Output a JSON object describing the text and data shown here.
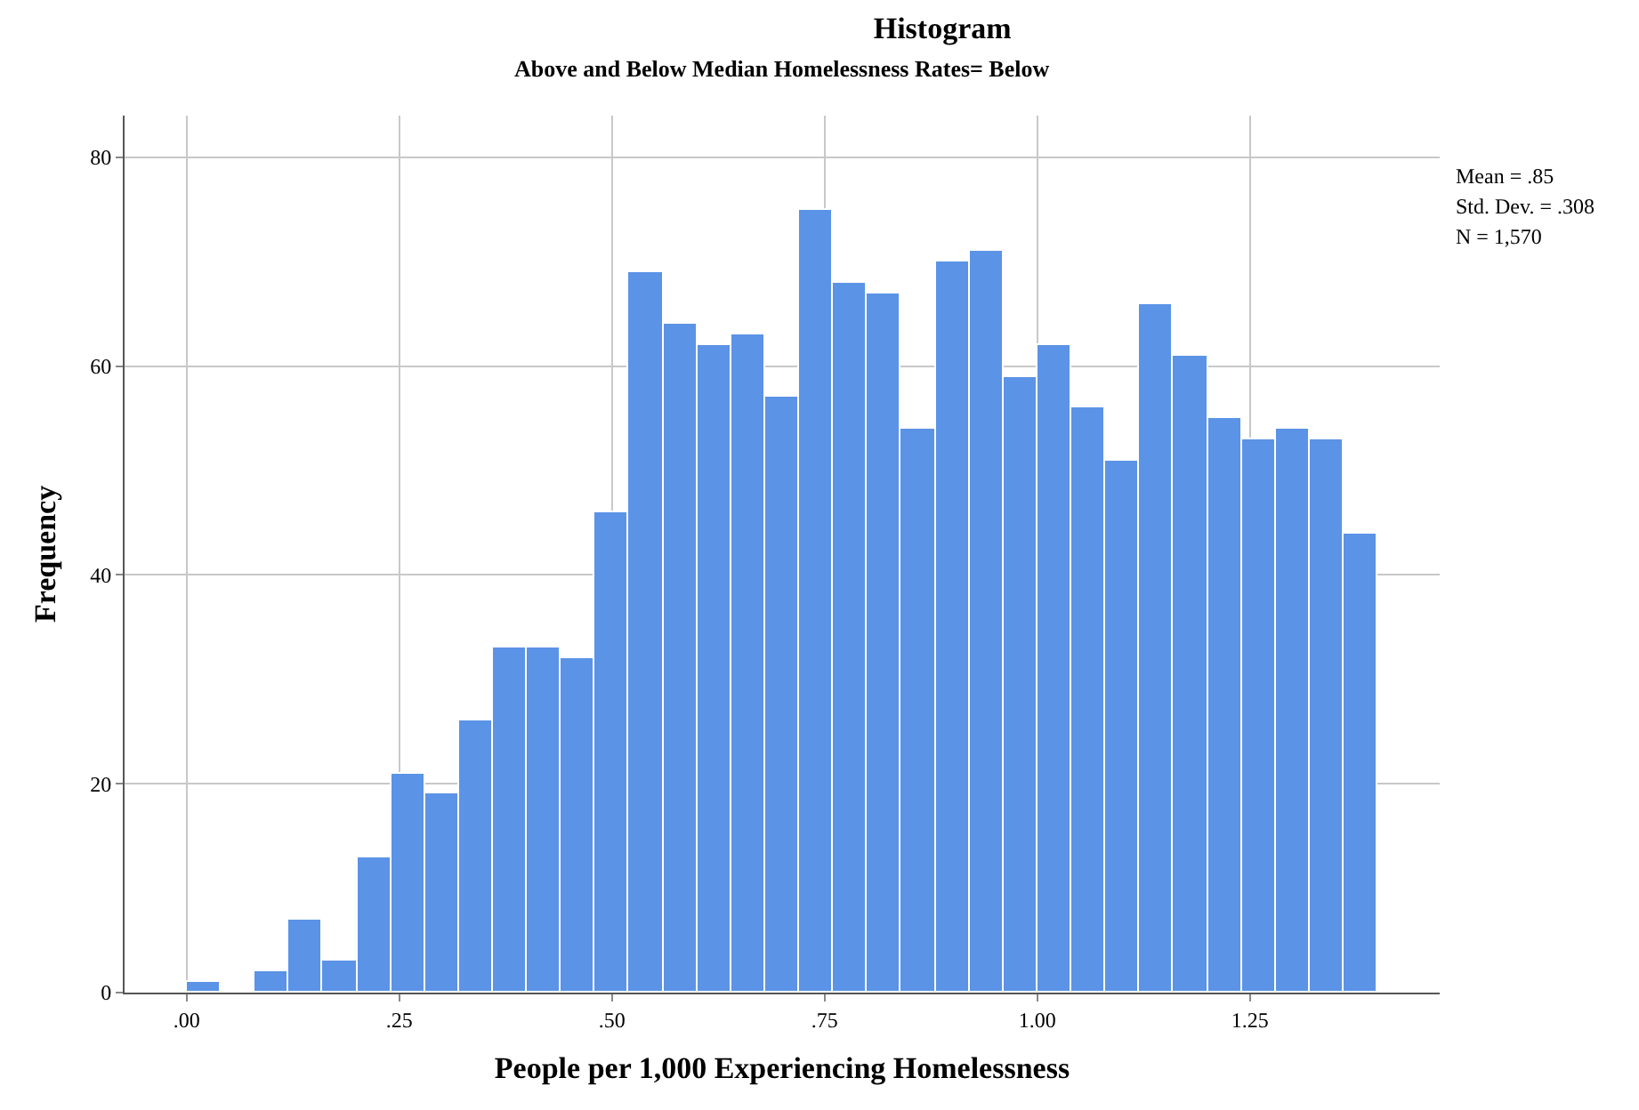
{
  "chart_data": {
    "type": "histogram",
    "title": "Histogram",
    "subtitle": "Above and Below Median Homelessness Rates= Below",
    "xlabel": "People per 1,000 Experiencing Homelessness",
    "ylabel": "Frequency",
    "bins": [
      0,
      0.04,
      0.08,
      0.12,
      0.16,
      0.2,
      0.24,
      0.28,
      0.32,
      0.36,
      0.4,
      0.44,
      0.48,
      0.52,
      0.56,
      0.6,
      0.64,
      0.68,
      0.72,
      0.76,
      0.8,
      0.84,
      0.88,
      0.92,
      0.96,
      1,
      1.04,
      1.08,
      1.12,
      1.16,
      1.2,
      1.24,
      1.28,
      1.32,
      1.36,
      1.4
    ],
    "values": [
      1,
      0,
      2,
      7,
      3,
      13,
      21,
      19,
      26,
      33,
      33,
      32,
      46,
      69,
      64,
      62,
      63,
      57,
      75,
      68,
      67,
      54,
      70,
      71,
      59,
      62,
      56,
      51,
      66,
      61,
      55,
      53,
      54,
      53,
      44
    ],
    "color": "#5b93e6",
    "xlim": [
      -0.073,
      1.473
    ],
    "xticks": [
      {
        "value": 0,
        "label": ".00"
      },
      {
        "value": 0.25,
        "label": ".25"
      },
      {
        "value": 0.5,
        "label": ".50"
      },
      {
        "value": 0.75,
        "label": ".75"
      },
      {
        "value": 1,
        "label": "1.00"
      },
      {
        "value": 1.25,
        "label": "1.25"
      }
    ],
    "ylim": [
      0,
      84
    ],
    "yticks": [
      0,
      20,
      40,
      60,
      80
    ],
    "grid": true,
    "annotations": [
      "Mean = .85",
      "Std. Dev. = .308",
      "N = 1,570"
    ]
  }
}
